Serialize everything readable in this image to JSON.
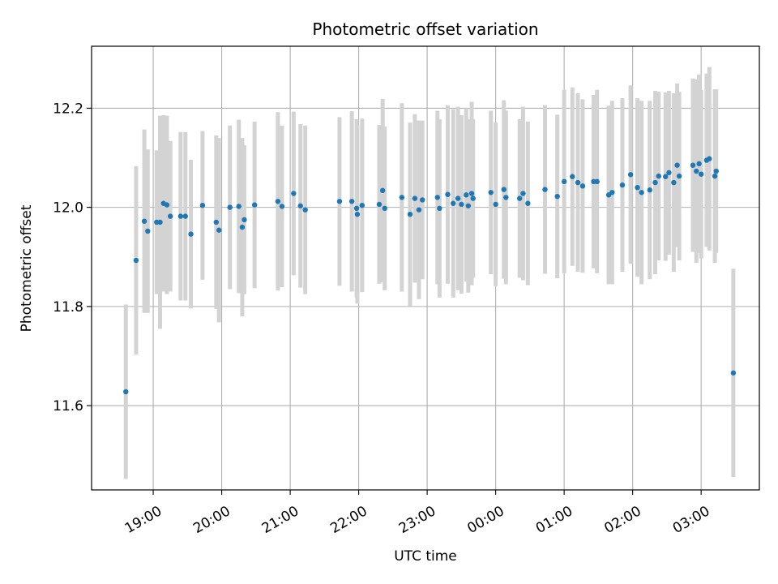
{
  "chart_data": {
    "type": "scatter",
    "title": "Photometric offset variation",
    "xlabel": "UTC time",
    "ylabel": "Photometric offset",
    "grid": true,
    "x_unit": "hours (UTC clock time, continuing past midnight)",
    "xlim": [
      18.1,
      27.85
    ],
    "ylim": [
      11.43,
      12.325
    ],
    "x_ticks": [
      {
        "value": 19,
        "label": "19:00"
      },
      {
        "value": 20,
        "label": "20:00"
      },
      {
        "value": 21,
        "label": "21:00"
      },
      {
        "value": 22,
        "label": "22:00"
      },
      {
        "value": 23,
        "label": "23:00"
      },
      {
        "value": 24,
        "label": "00:00"
      },
      {
        "value": 25,
        "label": "01:00"
      },
      {
        "value": 26,
        "label": "02:00"
      },
      {
        "value": 27,
        "label": "03:00"
      }
    ],
    "y_ticks": [
      {
        "value": 11.6,
        "label": "11.6"
      },
      {
        "value": 11.8,
        "label": "11.8"
      },
      {
        "value": 12.0,
        "label": "12.0"
      },
      {
        "value": 12.2,
        "label": "12.2"
      }
    ],
    "colors": {
      "points": "#1f77b4",
      "errorbars": "#d3d3d3",
      "grid": "#b0b0b0"
    },
    "points": [
      [
        18.6,
        11.628,
        0.176
      ],
      [
        18.75,
        11.893,
        0.19
      ],
      [
        18.87,
        11.972,
        0.185
      ],
      [
        18.92,
        11.952,
        0.165
      ],
      [
        19.05,
        11.97,
        0.145
      ],
      [
        19.1,
        11.97,
        0.215
      ],
      [
        19.15,
        12.008,
        0.178
      ],
      [
        19.2,
        12.005,
        0.18
      ],
      [
        19.25,
        11.982,
        0.152
      ],
      [
        19.4,
        11.982,
        0.17
      ],
      [
        19.47,
        11.982,
        0.17
      ],
      [
        19.55,
        11.946,
        0.15
      ],
      [
        19.72,
        12.004,
        0.15
      ],
      [
        19.92,
        11.97,
        0.175
      ],
      [
        19.96,
        11.954,
        0.186
      ],
      [
        20.12,
        12.0,
        0.165
      ],
      [
        20.25,
        12.002,
        0.175
      ],
      [
        20.3,
        11.96,
        0.18
      ],
      [
        20.33,
        11.975,
        0.15
      ],
      [
        20.48,
        12.005,
        0.168
      ],
      [
        20.82,
        12.012,
        0.18
      ],
      [
        20.88,
        12.002,
        0.163
      ],
      [
        21.05,
        12.028,
        0.165
      ],
      [
        21.15,
        12.003,
        0.165
      ],
      [
        21.22,
        11.995,
        0.17
      ],
      [
        21.72,
        12.012,
        0.17
      ],
      [
        21.9,
        12.012,
        0.182
      ],
      [
        21.97,
        11.998,
        0.18
      ],
      [
        21.98,
        11.986,
        0.18
      ],
      [
        22.05,
        12.004,
        0.175
      ],
      [
        22.3,
        12.006,
        0.16
      ],
      [
        22.35,
        12.034,
        0.185
      ],
      [
        22.38,
        11.998,
        0.165
      ],
      [
        22.63,
        12.02,
        0.19
      ],
      [
        22.75,
        11.986,
        0.185
      ],
      [
        22.82,
        12.018,
        0.17
      ],
      [
        22.88,
        11.995,
        0.18
      ],
      [
        22.93,
        12.015,
        0.16
      ],
      [
        23.15,
        12.02,
        0.175
      ],
      [
        23.18,
        11.998,
        0.18
      ],
      [
        23.3,
        12.026,
        0.18
      ],
      [
        23.38,
        12.008,
        0.19
      ],
      [
        23.45,
        12.018,
        0.185
      ],
      [
        23.5,
        12.006,
        0.18
      ],
      [
        23.57,
        12.025,
        0.175
      ],
      [
        23.6,
        12.003,
        0.175
      ],
      [
        23.65,
        12.028,
        0.185
      ],
      [
        23.67,
        12.018,
        0.16
      ],
      [
        23.93,
        12.03,
        0.165
      ],
      [
        24.0,
        12.006,
        0.165
      ],
      [
        24.12,
        12.036,
        0.18
      ],
      [
        24.15,
        12.02,
        0.175
      ],
      [
        24.35,
        12.018,
        0.16
      ],
      [
        24.4,
        12.028,
        0.175
      ],
      [
        24.47,
        12.008,
        0.165
      ],
      [
        24.72,
        12.036,
        0.17
      ],
      [
        24.9,
        12.022,
        0.165
      ],
      [
        25.0,
        12.052,
        0.185
      ],
      [
        25.12,
        12.062,
        0.18
      ],
      [
        25.2,
        12.05,
        0.18
      ],
      [
        25.27,
        12.043,
        0.175
      ],
      [
        25.43,
        12.052,
        0.175
      ],
      [
        25.48,
        12.052,
        0.185
      ],
      [
        25.65,
        12.025,
        0.18
      ],
      [
        25.7,
        12.03,
        0.185
      ],
      [
        25.85,
        12.045,
        0.175
      ],
      [
        25.97,
        12.066,
        0.18
      ],
      [
        26.07,
        12.04,
        0.18
      ],
      [
        26.13,
        12.03,
        0.185
      ],
      [
        26.25,
        12.035,
        0.18
      ],
      [
        26.33,
        12.05,
        0.185
      ],
      [
        26.38,
        12.063,
        0.17
      ],
      [
        26.48,
        12.062,
        0.17
      ],
      [
        26.53,
        12.07,
        0.165
      ],
      [
        26.6,
        12.05,
        0.18
      ],
      [
        26.65,
        12.085,
        0.165
      ],
      [
        26.68,
        12.063,
        0.17
      ],
      [
        26.88,
        12.085,
        0.175
      ],
      [
        26.93,
        12.073,
        0.185
      ],
      [
        26.97,
        12.088,
        0.18
      ],
      [
        27.0,
        12.067,
        0.17
      ],
      [
        27.08,
        12.095,
        0.175
      ],
      [
        27.12,
        12.098,
        0.185
      ],
      [
        27.2,
        12.063,
        0.175
      ],
      [
        27.22,
        12.073,
        0.165
      ],
      [
        27.47,
        11.666,
        0.21
      ]
    ]
  }
}
